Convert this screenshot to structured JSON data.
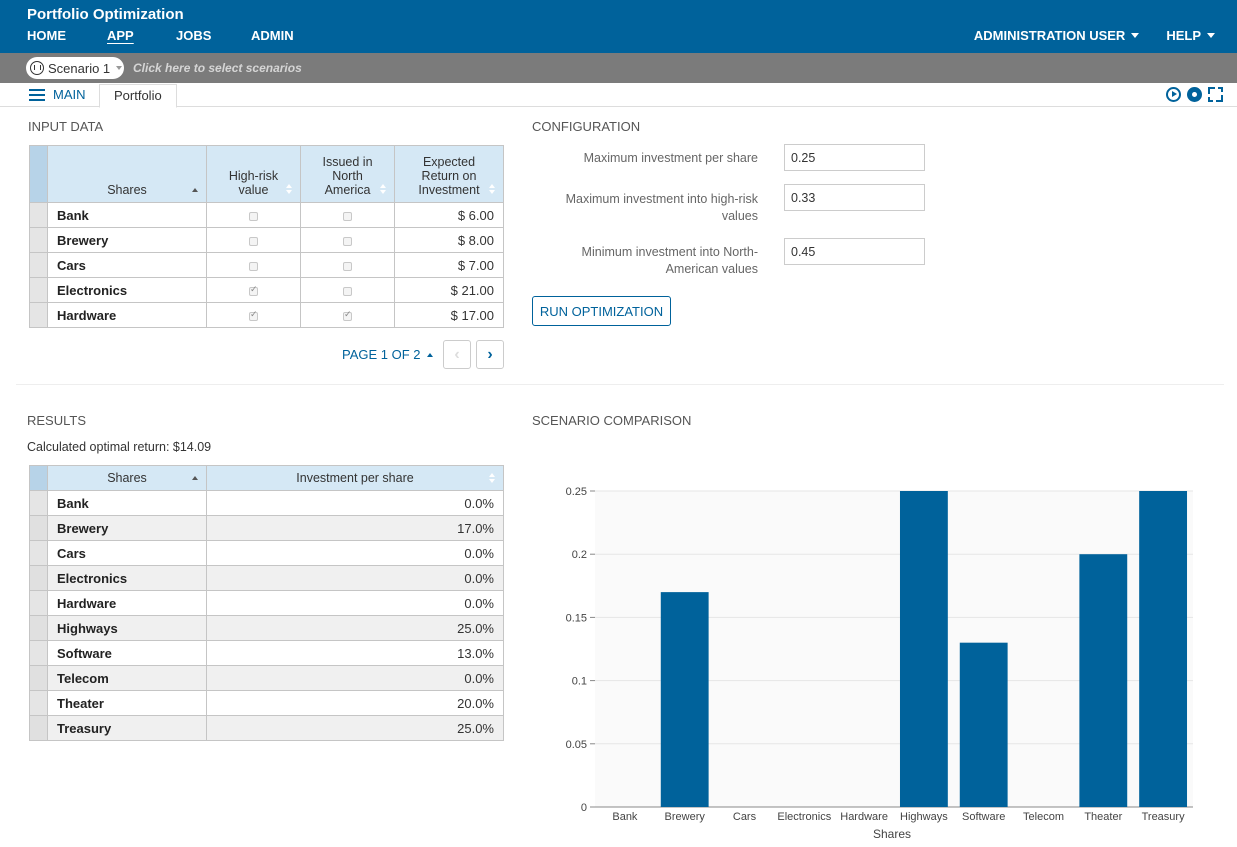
{
  "header": {
    "title": "Portfolio Optimization",
    "nav": [
      "HOME",
      "APP",
      "JOBS",
      "ADMIN"
    ],
    "user_menu": "ADMINISTRATION USER",
    "help_menu": "HELP"
  },
  "scenario_bar": {
    "selected": "Scenario 1",
    "hint": "Click here to select scenarios"
  },
  "tabs": {
    "main": "MAIN",
    "active": "Portfolio"
  },
  "input_data": {
    "title": "INPUT DATA",
    "columns": [
      "Shares",
      "High-risk value",
      "Issued in North America",
      "Expected Return on Investment"
    ],
    "rows": [
      {
        "share": "Bank",
        "high_risk": false,
        "north_america": false,
        "return": "$ 6.00"
      },
      {
        "share": "Brewery",
        "high_risk": false,
        "north_america": false,
        "return": "$ 8.00"
      },
      {
        "share": "Cars",
        "high_risk": false,
        "north_america": false,
        "return": "$ 7.00"
      },
      {
        "share": "Electronics",
        "high_risk": true,
        "north_america": false,
        "return": "$ 21.00"
      },
      {
        "share": "Hardware",
        "high_risk": true,
        "north_america": true,
        "return": "$ 17.00"
      }
    ],
    "pager": "PAGE 1 OF 2"
  },
  "configuration": {
    "title": "CONFIGURATION",
    "fields": [
      {
        "label": "Maximum investment per share",
        "value": "0.25"
      },
      {
        "label": "Maximum investment into high-risk values",
        "value": "0.33"
      },
      {
        "label": "Minimum investment into North-American values",
        "value": "0.45"
      }
    ],
    "run_button": "RUN OPTIMIZATION"
  },
  "results": {
    "title": "RESULTS",
    "summary": "Calculated optimal return:  $14.09",
    "columns": [
      "Shares",
      "Investment per share"
    ],
    "rows": [
      {
        "share": "Bank",
        "value": "0.0%"
      },
      {
        "share": "Brewery",
        "value": "17.0%"
      },
      {
        "share": "Cars",
        "value": "0.0%"
      },
      {
        "share": "Electronics",
        "value": "0.0%"
      },
      {
        "share": "Hardware",
        "value": "0.0%"
      },
      {
        "share": "Highways",
        "value": "25.0%"
      },
      {
        "share": "Software",
        "value": "13.0%"
      },
      {
        "share": "Telecom",
        "value": "0.0%"
      },
      {
        "share": "Theater",
        "value": "20.0%"
      },
      {
        "share": "Treasury",
        "value": "25.0%"
      }
    ]
  },
  "scenario_comparison": {
    "title": "SCENARIO COMPARISON"
  },
  "colors": {
    "brand": "#00629b",
    "bar": "#00629b",
    "scenario_bar": "#7b7b7b",
    "header_cell": "#d5e8f5"
  },
  "chart_data": {
    "type": "bar",
    "categories": [
      "Bank",
      "Brewery",
      "Cars",
      "Electronics",
      "Hardware",
      "Highways",
      "Software",
      "Telecom",
      "Theater",
      "Treasury"
    ],
    "values": [
      0,
      0.17,
      0,
      0,
      0,
      0.25,
      0.13,
      0,
      0.2,
      0.25
    ],
    "xlabel": "Shares",
    "ylabel": "",
    "ylim": [
      0,
      0.25
    ],
    "yticks": [
      "0",
      "0.05",
      "0.1",
      "0.15",
      "0.2",
      "0.25"
    ],
    "grid": true
  }
}
